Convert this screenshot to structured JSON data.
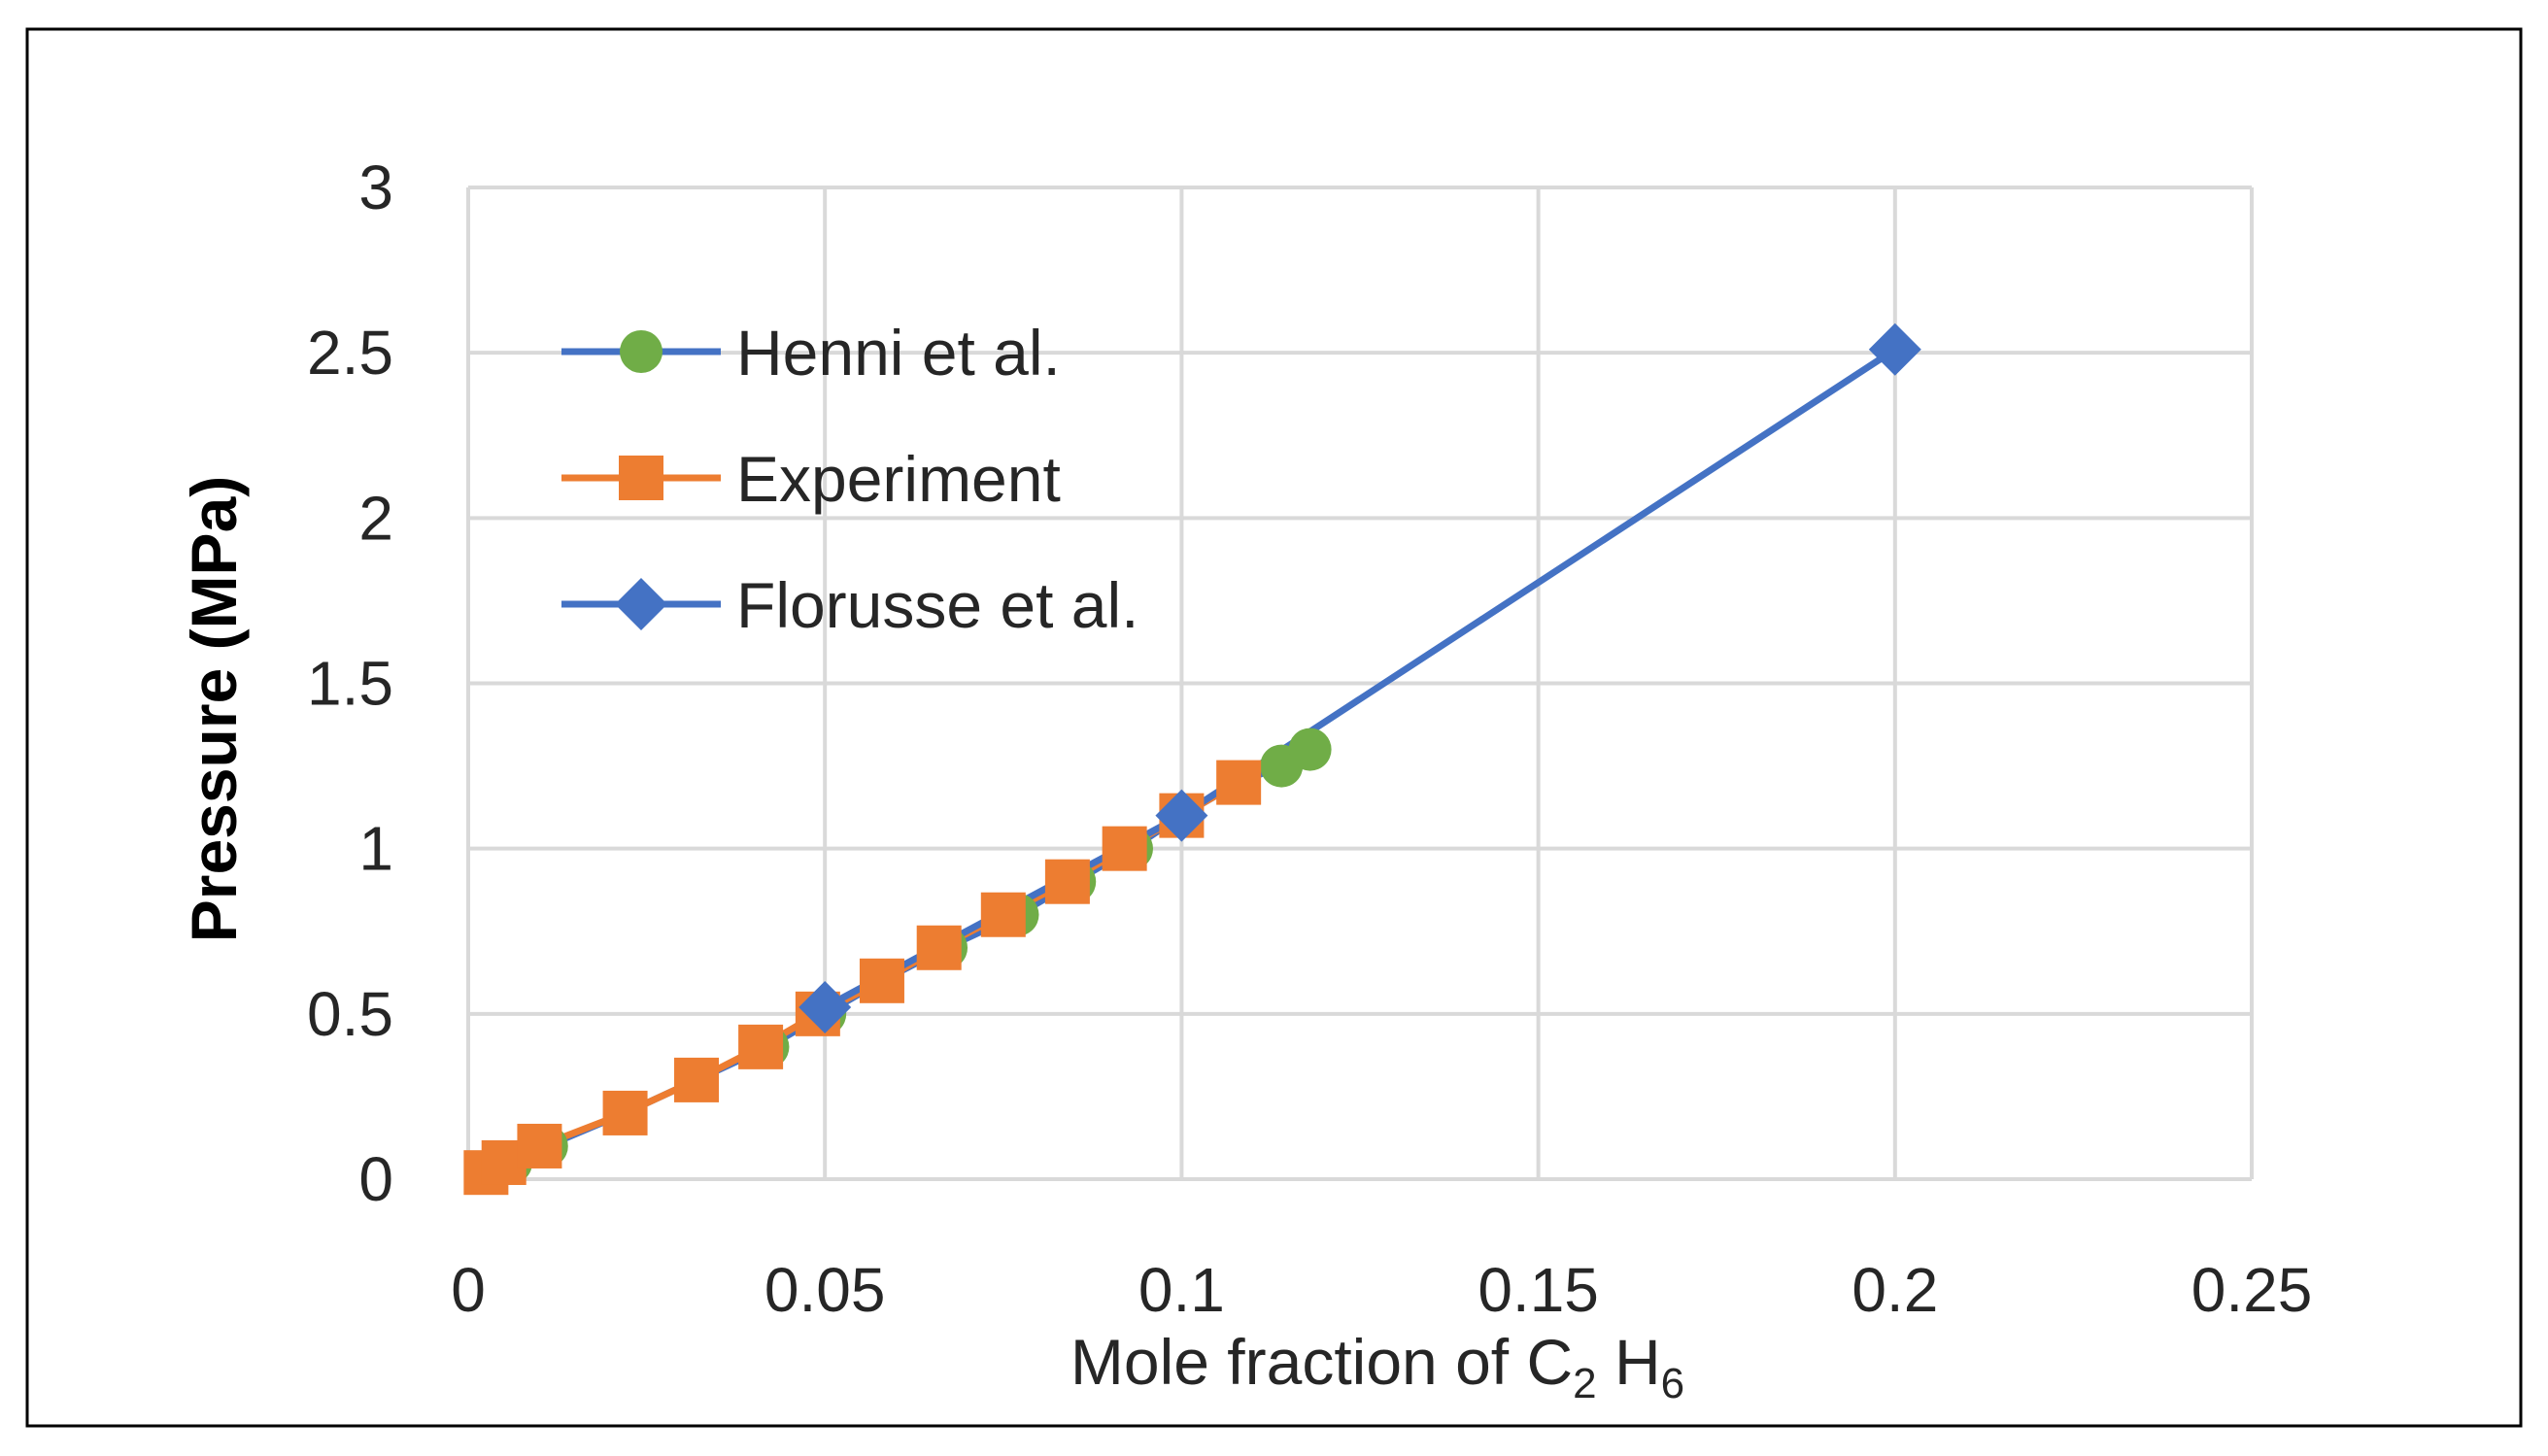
{
  "chart_data": {
    "type": "line",
    "title": "",
    "xlabel_main": "Mole fraction of C",
    "xlabel_sub1": "2",
    "xlabel_mid": " H",
    "xlabel_sub2": "6",
    "ylabel": "Pressure (MPa)",
    "xlim": [
      0,
      0.25
    ],
    "ylim": [
      0,
      3
    ],
    "xticks": [
      "0",
      "0.05",
      "0.1",
      "0.15",
      "0.2",
      "0.25"
    ],
    "yticks": [
      "0",
      "0.5",
      "1",
      "1.5",
      "2",
      "2.5",
      "3"
    ],
    "grid": true,
    "legend_position": "top-left",
    "series": [
      {
        "name": "Henni et al.",
        "marker": "circle",
        "color": "#70AD47",
        "line_color": "#4472C4",
        "x": [
          0.0025,
          0.006,
          0.011,
          0.022,
          0.032,
          0.042,
          0.05,
          0.058,
          0.067,
          0.077,
          0.085,
          0.093,
          0.1,
          0.108,
          0.114,
          0.118
        ],
        "y": [
          0.02,
          0.05,
          0.1,
          0.2,
          0.3,
          0.4,
          0.5,
          0.6,
          0.7,
          0.8,
          0.9,
          1.0,
          1.1,
          1.2,
          1.25,
          1.3
        ]
      },
      {
        "name": "Experiment",
        "marker": "square",
        "color": "#ED7D31",
        "line_color": "#ED7D31",
        "x": [
          0.0025,
          0.005,
          0.01,
          0.022,
          0.032,
          0.041,
          0.049,
          0.058,
          0.066,
          0.075,
          0.084,
          0.092,
          0.1,
          0.108
        ],
        "y": [
          0.02,
          0.05,
          0.1,
          0.2,
          0.3,
          0.4,
          0.5,
          0.6,
          0.7,
          0.8,
          0.9,
          1.0,
          1.1,
          1.2
        ]
      },
      {
        "name": "Florusse et al.",
        "marker": "diamond",
        "color": "#4472C4",
        "line_color": "#4472C4",
        "x": [
          0.05,
          0.1,
          0.2
        ],
        "y": [
          0.52,
          1.1,
          2.51
        ]
      }
    ]
  }
}
